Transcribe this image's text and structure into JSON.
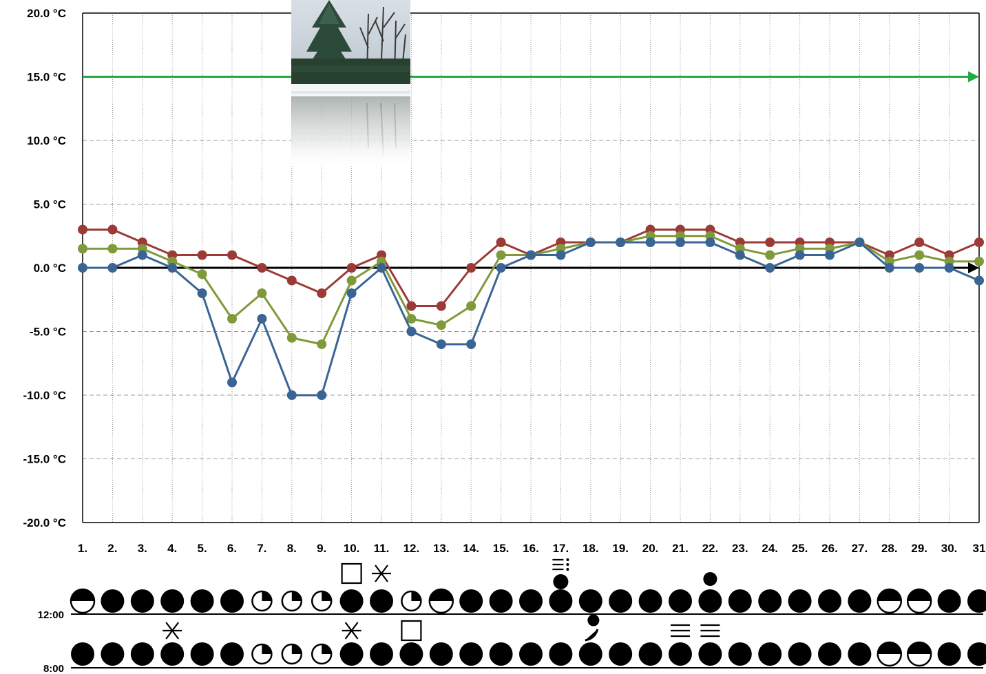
{
  "chart_data": {
    "type": "line",
    "title": "",
    "xlabel": "",
    "ylabel": "",
    "categories": [
      "1.",
      "2.",
      "3.",
      "4.",
      "5.",
      "6.",
      "7.",
      "8.",
      "9.",
      "10.",
      "11.",
      "12.",
      "13.",
      "14.",
      "15.",
      "16.",
      "17.",
      "18.",
      "19.",
      "20.",
      "21.",
      "22.",
      "23.",
      "24.",
      "25.",
      "26.",
      "27.",
      "28.",
      "29.",
      "30.",
      "31"
    ],
    "ylim": [
      -20,
      20
    ],
    "yticks": [
      "20.0 °C",
      "15.0 °C",
      "10.0 °C",
      "5.0 °C",
      "0.0 °C",
      "-5.0 °C",
      "-10.0 °C",
      "-15.0 °C",
      "-20.0 °C"
    ],
    "ytick_values": [
      20,
      15,
      10,
      5,
      0,
      -5,
      -10,
      -15,
      -20
    ],
    "grid": true,
    "reference_lines": [
      {
        "value": 0,
        "color": "#000000"
      },
      {
        "value": 15,
        "color": "#22aa44"
      }
    ],
    "series": [
      {
        "color": "#9b3a36",
        "values": [
          3,
          3,
          2,
          1,
          1,
          1,
          0,
          -1,
          -2,
          0,
          1,
          -3,
          -3,
          0,
          2,
          1,
          2,
          2,
          2,
          3,
          3,
          3,
          2,
          2,
          2,
          2,
          2,
          1,
          2,
          1,
          2
        ]
      },
      {
        "color": "#7f9a3a",
        "values": [
          1.5,
          1.5,
          1.5,
          0.5,
          -0.5,
          -4,
          -2,
          -5.5,
          -6,
          -1,
          0.5,
          -4,
          -4.5,
          -3,
          1,
          1,
          1.5,
          2,
          2,
          2.5,
          2.5,
          2.5,
          1.5,
          1,
          1.5,
          1.5,
          2,
          0.5,
          1,
          0.5,
          0.5
        ]
      },
      {
        "color": "#3a6494",
        "values": [
          0,
          0,
          1,
          0,
          -2,
          -9,
          -4,
          -10,
          -10,
          -2,
          0,
          -5,
          -6,
          -6,
          0,
          1,
          1,
          2,
          2,
          2,
          2,
          2,
          1,
          0,
          1,
          1,
          2,
          0,
          0,
          0,
          -1
        ]
      }
    ]
  },
  "weather": {
    "rows": [
      {
        "time_label": "12:00",
        "cloud": [
          "half",
          "full",
          "full",
          "full",
          "full",
          "full",
          "quarter",
          "quarter",
          "quarter",
          "full",
          "full",
          "quarter",
          "half",
          "full",
          "full",
          "full",
          "full",
          "full",
          "full",
          "full",
          "full",
          "full",
          "full",
          "full",
          "full",
          "full",
          "full",
          "half",
          "half",
          "full",
          "full"
        ],
        "extra": {
          "10": "fog",
          "11": "snow",
          "17": "rain-shower",
          "22": "dot"
        }
      },
      {
        "time_label": "8:00",
        "cloud": [
          "full",
          "full",
          "full",
          "full",
          "full",
          "full",
          "quarter",
          "quarter",
          "quarter",
          "full",
          "full",
          "full",
          "full",
          "full",
          "full",
          "full",
          "full",
          "full",
          "full",
          "full",
          "full",
          "full",
          "full",
          "full",
          "full",
          "full",
          "full",
          "half",
          "half",
          "full",
          "full"
        ],
        "extra": {
          "4": "snow",
          "10": "snow",
          "12": "fog",
          "18": "drizzle",
          "21": "mist",
          "22": "mist"
        }
      }
    ]
  },
  "colors": {
    "zero_line": "#000000",
    "ref_line": "#22aa44",
    "grid": "#999999"
  }
}
